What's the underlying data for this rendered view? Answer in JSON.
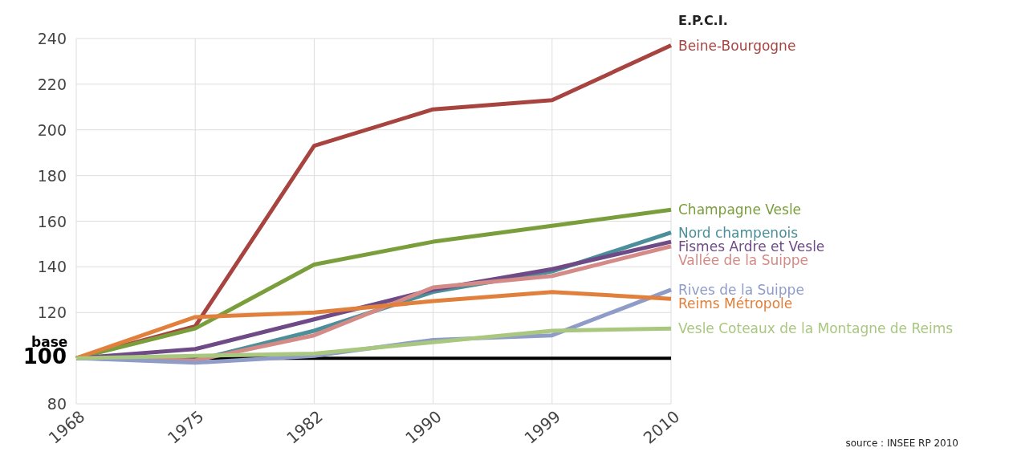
{
  "chart_data": {
    "type": "line",
    "legend_title": "E.P.C.I.",
    "categories": [
      "1968",
      "1975",
      "1982",
      "1990",
      "1999",
      "2010"
    ],
    "series": [
      {
        "name": "Beine-Bourgogne",
        "color": "#a84440",
        "values": [
          100,
          114,
          193,
          209,
          213,
          237
        ]
      },
      {
        "name": "Champagne Vesle",
        "color": "#7a9e3c",
        "values": [
          100,
          113,
          141,
          151,
          158,
          165
        ]
      },
      {
        "name": "Nord champenois",
        "color": "#4a8f99",
        "values": [
          100,
          99,
          112,
          129,
          138,
          155
        ]
      },
      {
        "name": "Fismes Ardre et Vesle",
        "color": "#6e4b87",
        "values": [
          100,
          104,
          117,
          130,
          139,
          151
        ]
      },
      {
        "name": "Vallée de la Suippe",
        "color": "#d48a86",
        "values": [
          100,
          99,
          110,
          131,
          136,
          149
        ]
      },
      {
        "name": "Rives de la Suippe",
        "color": "#8f9cc8",
        "values": [
          100,
          98,
          101,
          108,
          110,
          130
        ]
      },
      {
        "name": "Reims Métropole",
        "color": "#e0803c",
        "values": [
          100,
          118,
          120,
          125,
          129,
          126
        ]
      },
      {
        "name": "Vesle Coteaux de la Montagne de Reims",
        "color": "#a9c77f",
        "values": [
          100,
          101,
          102,
          107,
          112,
          113
        ]
      }
    ],
    "ylim": [
      80,
      240
    ],
    "yticks": [
      80,
      100,
      120,
      140,
      160,
      180,
      200,
      220,
      240
    ],
    "grid": true,
    "legend": "right",
    "marker": "none",
    "line_style": "solid",
    "ref_lines": [
      {
        "axis": "y",
        "value": 100,
        "label": "base",
        "color": "#000000"
      }
    ],
    "annotations": [
      "source : INSEE RP 2010"
    ]
  }
}
